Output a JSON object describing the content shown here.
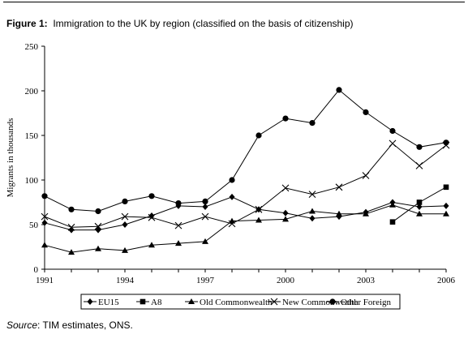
{
  "figure": {
    "label": "Figure 1:",
    "title": "Immigration to the UK by region (classified on the basis of citizenship)",
    "source_label": "Source",
    "source_text": ": TIM estimates, ONS."
  },
  "chart_data": {
    "type": "line",
    "title": "Immigration to the UK by region (classified on the basis of citizenship)",
    "xlabel": "",
    "ylabel": "Migrants in thousands",
    "x": [
      1991,
      1992,
      1993,
      1994,
      1995,
      1996,
      1997,
      1998,
      1999,
      2000,
      2001,
      2002,
      2003,
      2004,
      2005,
      2006
    ],
    "x_ticks": [
      "1991",
      "1994",
      "1997",
      "2000",
      "2003",
      "2006"
    ],
    "y_ticks": [
      "0",
      "50",
      "100",
      "150",
      "200",
      "250"
    ],
    "ylim": [
      0,
      250
    ],
    "xlim": [
      1991,
      2006
    ],
    "grid": false,
    "legend_position": "bottom",
    "series": [
      {
        "name": "EU15",
        "marker": "diamond",
        "values": [
          52,
          44,
          44,
          50,
          60,
          71,
          70,
          81,
          67,
          63,
          57,
          59,
          64,
          75,
          70,
          71
        ]
      },
      {
        "name": "A8",
        "marker": "square",
        "values": [
          null,
          null,
          null,
          null,
          null,
          null,
          null,
          null,
          null,
          null,
          null,
          null,
          null,
          53,
          75,
          92
        ]
      },
      {
        "name": "Old Commonwealth",
        "marker": "triangle",
        "values": [
          27,
          19,
          23,
          21,
          27,
          29,
          31,
          54,
          55,
          56,
          65,
          62,
          62,
          72,
          62,
          62
        ]
      },
      {
        "name": "New Commonwealth",
        "marker": "x",
        "values": [
          59,
          47,
          48,
          59,
          58,
          49,
          59,
          51,
          67,
          91,
          84,
          92,
          105,
          141,
          116,
          139
        ]
      },
      {
        "name": "Other Foreign",
        "marker": "circle",
        "values": [
          82,
          67,
          65,
          76,
          82,
          74,
          76,
          100,
          150,
          169,
          164,
          201,
          176,
          155,
          137,
          142
        ]
      }
    ]
  }
}
